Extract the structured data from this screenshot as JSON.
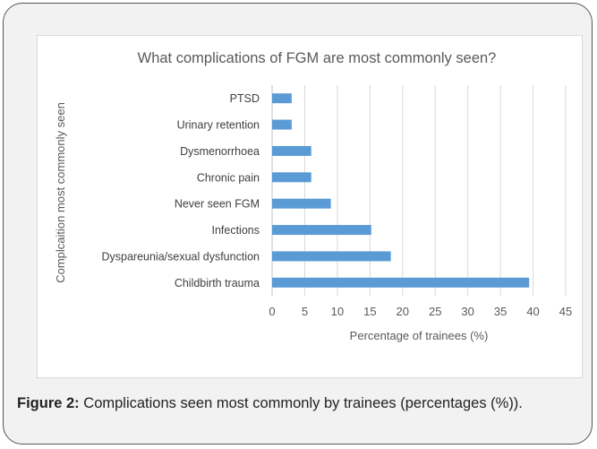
{
  "figure": {
    "label": "Figure 2:",
    "caption": "Complications seen most commonly by trainees (percentages (%))."
  },
  "chart_data": {
    "type": "bar",
    "orientation": "horizontal",
    "title": "What complications of FGM are most commonly seen?",
    "xlabel": "Percentage of trainees (%)",
    "ylabel": "Complcaition most commonly seen",
    "xlim": [
      0,
      45
    ],
    "xticks": [
      0,
      5,
      10,
      15,
      20,
      25,
      30,
      35,
      40,
      45
    ],
    "grid": "vertical",
    "bar_color": "#5b9bd5",
    "categories": [
      "PTSD",
      "Urinary retention",
      "Dysmenorrhoea",
      "Chronic pain",
      "Never seen FGM",
      "Infections",
      "Dyspareunia/sexual dysfunction",
      "Childbirth trauma"
    ],
    "values": [
      3,
      3,
      6,
      6,
      9,
      15.2,
      18.2,
      39.4
    ]
  }
}
